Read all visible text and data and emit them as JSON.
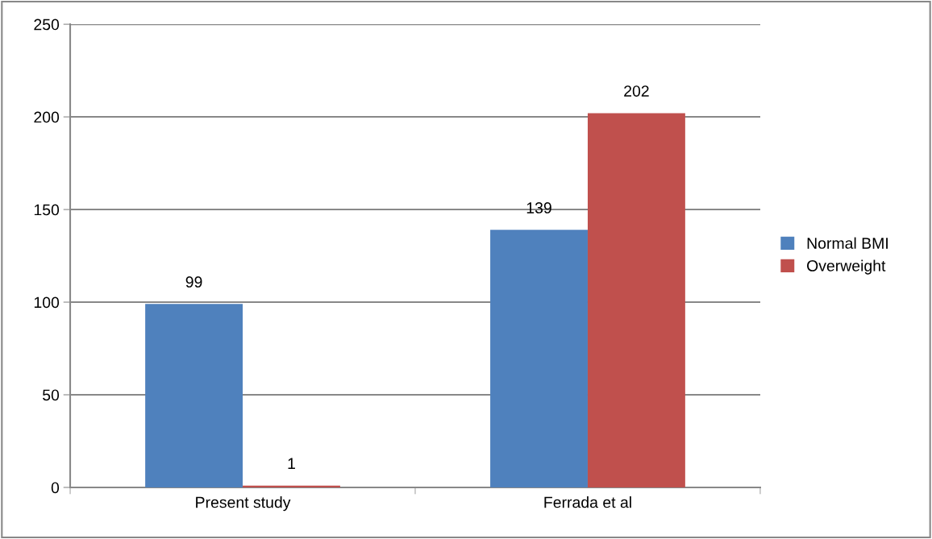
{
  "chart_data": {
    "type": "bar",
    "categories": [
      "Present study",
      "Ferrada et al"
    ],
    "series": [
      {
        "name": "Normal BMI",
        "color": "#4f81bd",
        "values": [
          99,
          139
        ]
      },
      {
        "name": "Overweight",
        "color": "#c0504d",
        "values": [
          1,
          202
        ]
      }
    ],
    "ylim": [
      0,
      250
    ],
    "yticks": [
      0,
      50,
      100,
      150,
      200,
      250
    ],
    "grid": "y",
    "legend": "right",
    "data_labels": true
  }
}
